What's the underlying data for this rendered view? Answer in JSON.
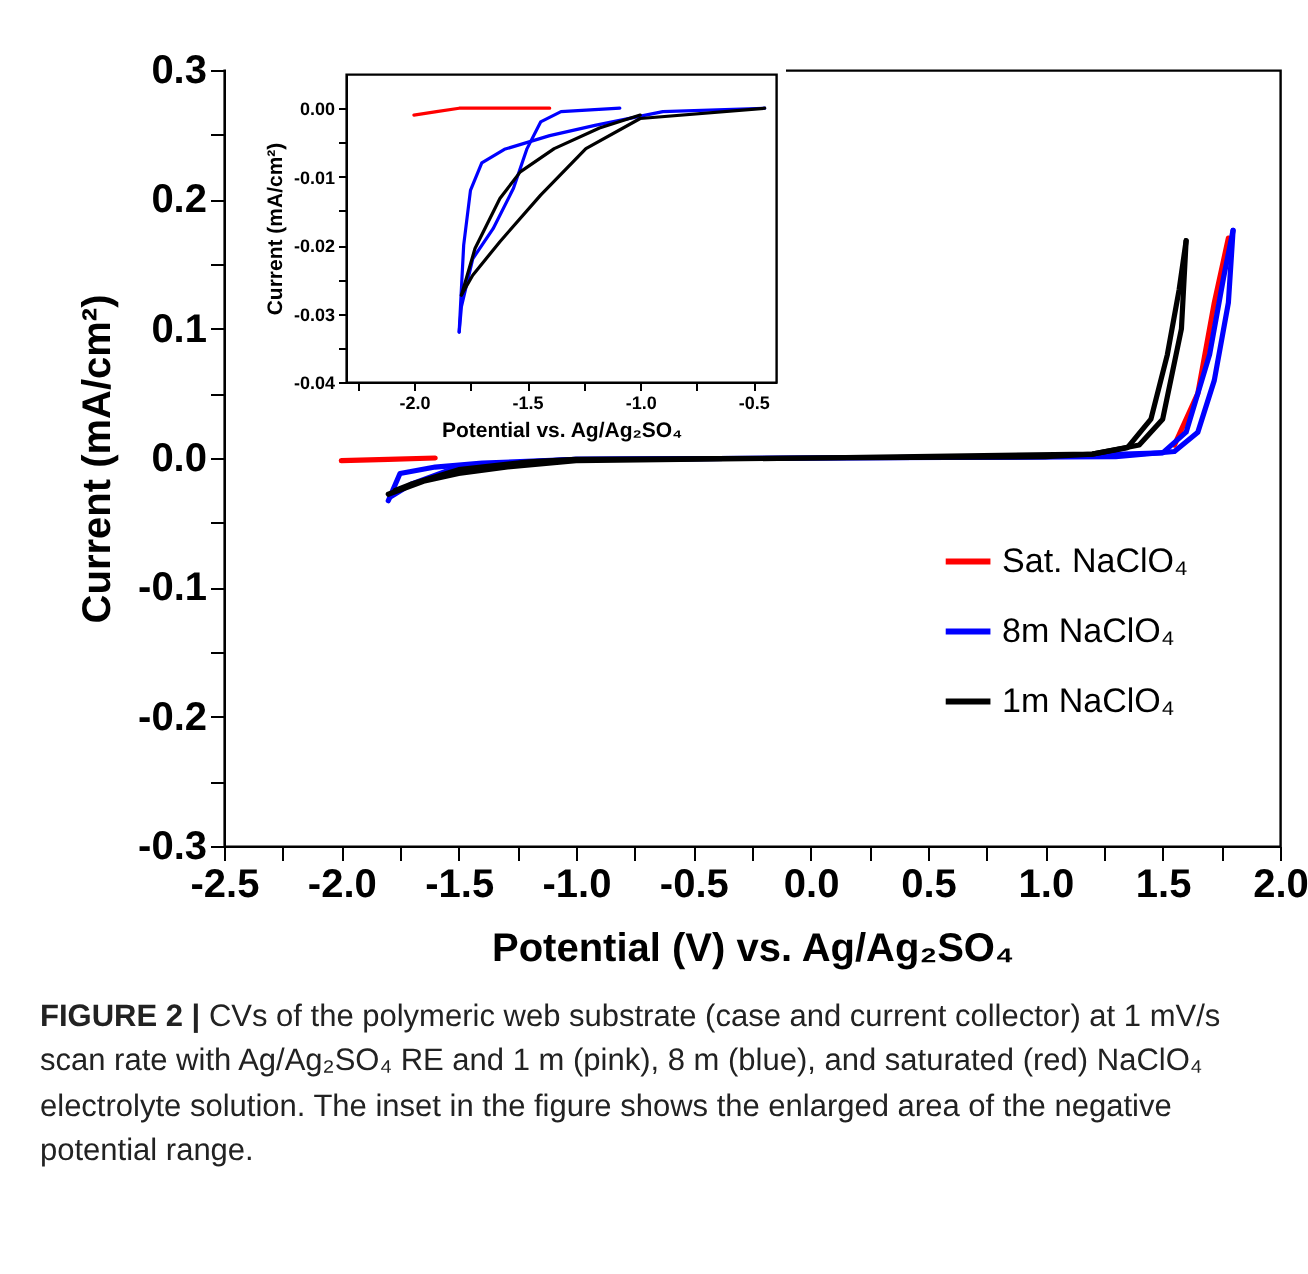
{
  "chart_data": [
    {
      "type": "line",
      "xlabel": "Potential (V) vs. Ag/Ag₂SO₄",
      "ylabel": "Current (mA/cm²)",
      "xlim": [
        -2.5,
        2.0
      ],
      "ylim": [
        -0.3,
        0.3
      ],
      "xticks": [
        {
          "value": -2.5,
          "label": "-2.5"
        },
        {
          "value": -2.0,
          "label": "-2.0"
        },
        {
          "value": -1.5,
          "label": "-1.5"
        },
        {
          "value": -1.0,
          "label": "-1.0"
        },
        {
          "value": -0.5,
          "label": "-0.5"
        },
        {
          "value": 0,
          "label": "0.0"
        },
        {
          "value": 0.5,
          "label": "0.5"
        },
        {
          "value": 1.0,
          "label": "1.0"
        },
        {
          "value": 1.5,
          "label": "1.5"
        },
        {
          "value": 2.0,
          "label": "2.0"
        },
        {
          "value": -2.25,
          "label": null
        },
        {
          "value": -1.75,
          "label": null
        },
        {
          "value": -1.25,
          "label": null
        },
        {
          "value": -0.75,
          "label": null
        },
        {
          "value": -0.25,
          "label": null
        },
        {
          "value": 0.25,
          "label": null
        },
        {
          "value": 0.75,
          "label": null
        },
        {
          "value": 1.25,
          "label": null
        },
        {
          "value": 1.75,
          "label": null
        }
      ],
      "yticks": [
        {
          "value": -0.3,
          "label": "-0.3"
        },
        {
          "value": -0.2,
          "label": "-0.2"
        },
        {
          "value": -0.1,
          "label": "-0.1"
        },
        {
          "value": 0,
          "label": "0.0"
        },
        {
          "value": 0.1,
          "label": "0.1"
        },
        {
          "value": 0.2,
          "label": "0.2"
        },
        {
          "value": 0.3,
          "label": "0.3"
        },
        {
          "value": -0.25,
          "label": null
        },
        {
          "value": -0.15,
          "label": null
        },
        {
          "value": -0.05,
          "label": null
        },
        {
          "value": 0.05,
          "label": null
        },
        {
          "value": 0.15,
          "label": null
        },
        {
          "value": 0.25,
          "label": null
        }
      ],
      "legend": "right",
      "grid": false,
      "marker": "none",
      "line_style": "solid",
      "annotations": [
        "FIGURE 2 | CVs of the polymeric web substrate (case and current collector) at 1 mV/s scan rate with Ag/Ag₂SO₄ RE and 1 m (pink), 8 m (blue), and saturated (red) NaClO₄ electrolyte solution. The inset in the figure shows the enlarged area of the negative potential range."
      ],
      "series": [
        {
          "name": "Sat. NaClO₄",
          "color": "#ff0000",
          "x": [
            -2.0,
            -1.8,
            -1.6,
            0,
            1.55,
            1.65,
            1.72,
            1.78
          ],
          "values": [
            -0.002,
            -0.001,
            0,
            null,
            0.01,
            0.05,
            0.12,
            0.17
          ]
        },
        {
          "name": "8m NaClO₄",
          "color": "#0000ff",
          "x": [
            -1.8,
            -1.75,
            -1.6,
            -1.4,
            -1.0,
            0,
            1.0,
            1.5,
            1.6,
            1.7,
            1.76,
            1.8
          ],
          "values": [
            -0.033,
            -0.012,
            -0.007,
            -0.004,
            -0.001,
            0,
            0.001,
            0.004,
            0.02,
            0.08,
            0.14,
            0.176
          ]
        },
        {
          "color": "#0000ff",
          "x": [
            1.8,
            1.78,
            1.72,
            1.65,
            1.55,
            1.3,
            0,
            -1.0,
            -1.3,
            -1.55,
            -1.7,
            -1.79
          ],
          "values": [
            0.176,
            0.12,
            0.06,
            0.02,
            0.005,
            0.001,
            0,
            -0.001,
            -0.004,
            -0.01,
            -0.02,
            -0.03
          ]
        },
        {
          "name": "1m NaClO₄",
          "color": "#000000",
          "x": [
            -1.8,
            -1.65,
            -1.5,
            -1.3,
            -1.0,
            0,
            1.0,
            1.2,
            1.35,
            1.45,
            1.52,
            1.57,
            1.6
          ],
          "values": [
            -0.028,
            -0.018,
            -0.012,
            -0.007,
            -0.002,
            0,
            0.001,
            0.003,
            0.008,
            0.03,
            0.08,
            0.13,
            0.168
          ]
        },
        {
          "color": "#000000",
          "x": [
            1.6,
            1.58,
            1.5,
            1.4,
            1.2,
            0,
            -1.0,
            -1.2,
            -1.5,
            -1.7,
            -1.77
          ],
          "values": [
            0.168,
            0.1,
            0.03,
            0.01,
            0.003,
            0,
            -0.001,
            -0.003,
            -0.009,
            -0.02,
            -0.025
          ]
        }
      ]
    },
    {
      "type": "line",
      "xlabel": "Potential vs. Ag/Ag₂SO₄",
      "ylabel": "Current (mA/cm²)",
      "xlim": [
        -2.3,
        -0.4
      ],
      "ylim": [
        -0.04,
        0.005
      ],
      "xticks": [
        {
          "value": -2.0,
          "label": "-2.0"
        },
        {
          "value": -1.5,
          "label": "-1.5"
        },
        {
          "value": -1.0,
          "label": "-1.0"
        },
        {
          "value": -0.5,
          "label": "-0.5"
        },
        {
          "value": -2.25,
          "label": null
        },
        {
          "value": -1.75,
          "label": null
        },
        {
          "value": -1.25,
          "label": null
        },
        {
          "value": -0.75,
          "label": null
        }
      ],
      "yticks": [
        {
          "value": 0,
          "label": "0.00"
        },
        -0.01,
        -0.02,
        -0.03,
        -0.04,
        {
          "value": -0.005,
          "label": null
        },
        {
          "value": -0.015,
          "label": null
        },
        {
          "value": -0.025,
          "label": null
        },
        {
          "value": -0.035,
          "label": null
        }
      ],
      "grid": false,
      "marker": "none",
      "line_style": "solid",
      "series": [
        {
          "color": "#ff0000",
          "x": [
            -2.0,
            -1.9,
            -1.8,
            -1.6,
            -1.4
          ],
          "values": [
            -0.001,
            -0.0005,
            0,
            0,
            0
          ]
        },
        {
          "color": "#0000ff",
          "x": [
            -0.45,
            -0.9,
            -1.2,
            -1.4,
            -1.6,
            -1.7,
            -1.75,
            -1.78,
            -1.8
          ],
          "values": [
            0,
            -0.0005,
            -0.0025,
            -0.004,
            -0.006,
            -0.008,
            -0.012,
            -0.02,
            -0.0327
          ]
        },
        {
          "color": "#0000ff",
          "x": [
            -1.8,
            -1.79,
            -1.74,
            -1.65,
            -1.56,
            -1.5,
            -1.44,
            -1.35,
            -1.09
          ],
          "values": [
            -0.0327,
            -0.029,
            -0.022,
            -0.0176,
            -0.0117,
            -0.0059,
            -0.002,
            -0.0005,
            0
          ]
        },
        {
          "color": "#000000",
          "x": [
            -0.45,
            -1.0,
            -1.24,
            -1.44,
            -1.62,
            -1.74,
            -1.79
          ],
          "values": [
            0,
            -0.0015,
            -0.0059,
            -0.0127,
            -0.0195,
            -0.0244,
            -0.0273
          ]
        },
        {
          "color": "#000000",
          "x": [
            -1.79,
            -1.73,
            -1.62,
            -1.53,
            -1.38,
            -1.18,
            -1.0
          ],
          "values": [
            -0.0273,
            -0.0205,
            -0.0132,
            -0.0093,
            -0.0059,
            -0.0029,
            -0.001
          ]
        }
      ]
    }
  ]
}
